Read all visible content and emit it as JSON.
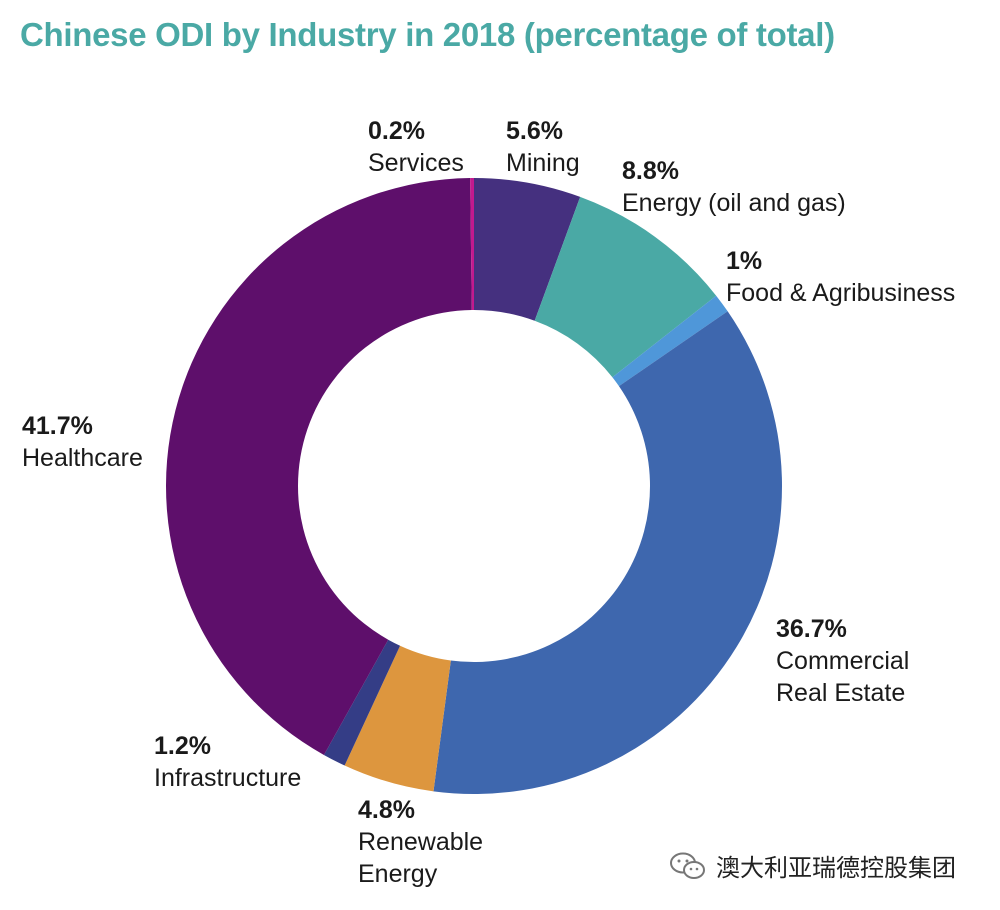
{
  "title": "Chinese ODI by Industry in 2018 (percentage of total)",
  "chart_data": {
    "type": "pie",
    "donut": true,
    "title": "Chinese ODI by Industry in 2018 (percentage of total)",
    "unit": "%",
    "slices": [
      {
        "label": "Mining",
        "name_lines": [
          "Mining"
        ],
        "value": 5.6,
        "value_label": "5.6%",
        "color": "#45307f"
      },
      {
        "label": "Energy (oil and gas)",
        "name_lines": [
          "Energy (oil and gas)"
        ],
        "value": 8.8,
        "value_label": "8.8%",
        "color": "#4aa9a5"
      },
      {
        "label": "Food & Agribusiness",
        "name_lines": [
          "Food & Agribusiness"
        ],
        "value": 1,
        "value_label": "1%",
        "color": "#4f97d9"
      },
      {
        "label": "Commercial Real Estate",
        "name_lines": [
          "Commercial",
          "Real Estate"
        ],
        "value": 36.7,
        "value_label": "36.7%",
        "color": "#3e67ae"
      },
      {
        "label": "Renewable Energy",
        "name_lines": [
          "Renewable",
          "Energy"
        ],
        "value": 4.8,
        "value_label": "4.8%",
        "color": "#dd963e"
      },
      {
        "label": "Infrastructure",
        "name_lines": [
          "Infrastructure"
        ],
        "value": 1.2,
        "value_label": "1.2%",
        "color": "#343d86"
      },
      {
        "label": "Healthcare",
        "name_lines": [
          "Healthcare"
        ],
        "value": 41.7,
        "value_label": "41.7%",
        "color": "#5e0f6b"
      },
      {
        "label": "Services",
        "name_lines": [
          "Services"
        ],
        "value": 0.2,
        "value_label": "0.2%",
        "color": "#c2198e"
      }
    ]
  },
  "watermark": {
    "text": "澳大利亚瑞德控股集团",
    "icon": "wechat-icon"
  }
}
